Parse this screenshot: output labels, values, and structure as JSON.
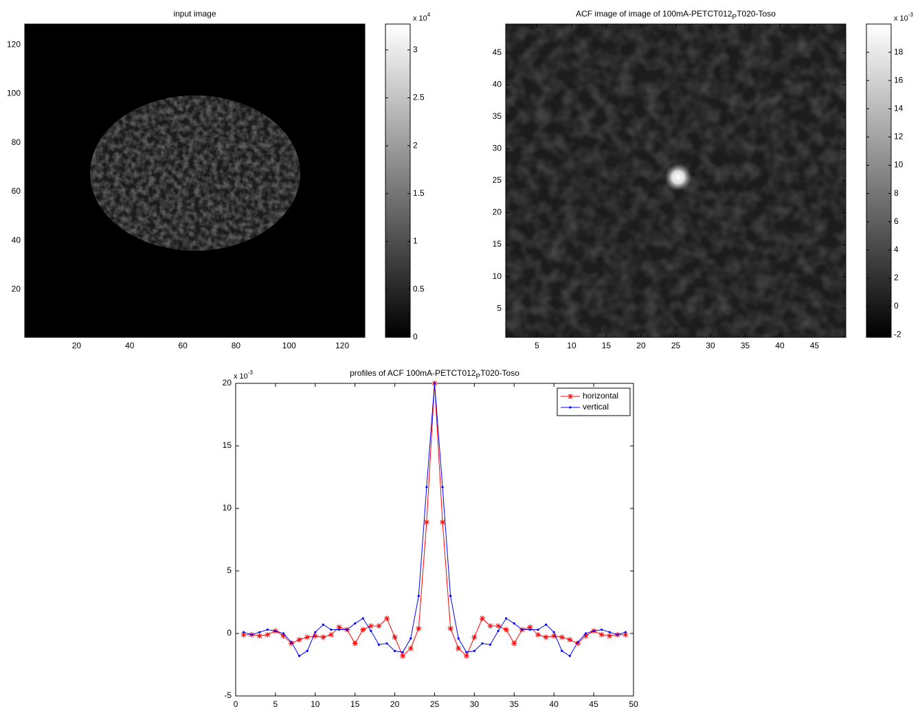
{
  "chart_data": [
    {
      "type": "image",
      "title": "input image",
      "xlim": [
        0.5,
        128.5
      ],
      "xticks": [
        20,
        40,
        60,
        80,
        100,
        120
      ],
      "ylim": [
        0.5,
        128.5
      ],
      "yticks": [
        20,
        40,
        60,
        80,
        100,
        120
      ],
      "colormap": "gray",
      "clim": [
        0,
        3.27
      ],
      "cticks": [
        0,
        0.5,
        1,
        1.5,
        2,
        2.5,
        3
      ],
      "colorbar_multiplier": "x 10",
      "colorbar_exponent": "4"
    },
    {
      "type": "image",
      "title": "ACF image of image of 100mA-PETCT012",
      "title_sub": "P",
      "title_end": "T020-Toso",
      "xlim": [
        0.5,
        49.5
      ],
      "xticks": [
        5,
        10,
        15,
        20,
        25,
        30,
        35,
        40,
        45
      ],
      "ylim": [
        0.5,
        49.5
      ],
      "yticks": [
        5,
        10,
        15,
        20,
        25,
        30,
        35,
        40,
        45
      ],
      "colormap": "gray",
      "clim": [
        -2.19,
        20
      ],
      "cticks": [
        -2,
        0,
        2,
        4,
        6,
        8,
        10,
        12,
        14,
        16,
        18
      ],
      "colorbar_multiplier": "x 10",
      "colorbar_exponent": "-3"
    },
    {
      "type": "line",
      "title": "profiles of ACF 100mA-PETCT012",
      "title_sub": "P",
      "title_end": "T020-Toso",
      "xlim": [
        0,
        50
      ],
      "xticks": [
        0,
        5,
        10,
        15,
        20,
        25,
        30,
        35,
        40,
        45,
        50
      ],
      "ylim": [
        -5,
        20
      ],
      "yticks": [
        -5,
        0,
        5,
        10,
        15,
        20
      ],
      "y_multiplier": "x 10",
      "y_exponent": "-3",
      "grid": false,
      "legend": "upper right",
      "x": [
        1,
        2,
        3,
        4,
        5,
        6,
        7,
        8,
        9,
        10,
        11,
        12,
        13,
        14,
        15,
        16,
        17,
        18,
        19,
        20,
        21,
        22,
        23,
        24,
        25,
        26,
        27,
        28,
        29,
        30,
        31,
        32,
        33,
        34,
        35,
        36,
        37,
        38,
        39,
        40,
        41,
        42,
        43,
        44,
        45,
        46,
        47,
        48,
        49
      ],
      "series": [
        {
          "name": "horizontal",
          "color": "#ff0000",
          "marker": "asterisk",
          "values": [
            -0.1,
            -0.1,
            -0.2,
            -0.1,
            0.2,
            -0.2,
            -0.8,
            -0.5,
            -0.3,
            -0.2,
            -0.3,
            -0.1,
            0.5,
            0.3,
            -0.8,
            0.3,
            0.6,
            0.6,
            1.2,
            -0.3,
            -1.8,
            -1.2,
            0.4,
            8.9,
            20,
            8.9,
            0.4,
            -1.2,
            -1.8,
            -0.3,
            1.2,
            0.6,
            0.6,
            0.3,
            -0.8,
            0.3,
            0.5,
            -0.1,
            -0.3,
            -0.2,
            -0.3,
            -0.5,
            -0.8,
            -0.2,
            0.2,
            -0.1,
            -0.2,
            -0.1,
            -0.1
          ]
        },
        {
          "name": "vertical",
          "color": "#0000ff",
          "marker": "dot",
          "values": [
            0.1,
            -0.1,
            0.1,
            0.3,
            0.2,
            0.0,
            -0.7,
            -1.8,
            -1.4,
            0.1,
            0.7,
            0.3,
            0.3,
            0.3,
            0.8,
            1.2,
            0.2,
            -0.9,
            -0.8,
            -1.4,
            -1.5,
            -0.4,
            3.0,
            11.7,
            20,
            11.7,
            3.0,
            -0.4,
            -1.5,
            -1.4,
            -0.8,
            -0.9,
            0.2,
            1.2,
            0.8,
            0.3,
            0.3,
            0.3,
            0.7,
            0.1,
            -1.4,
            -1.8,
            -0.7,
            0.0,
            0.2,
            0.3,
            0.1,
            -0.1,
            0.1
          ]
        }
      ]
    }
  ]
}
